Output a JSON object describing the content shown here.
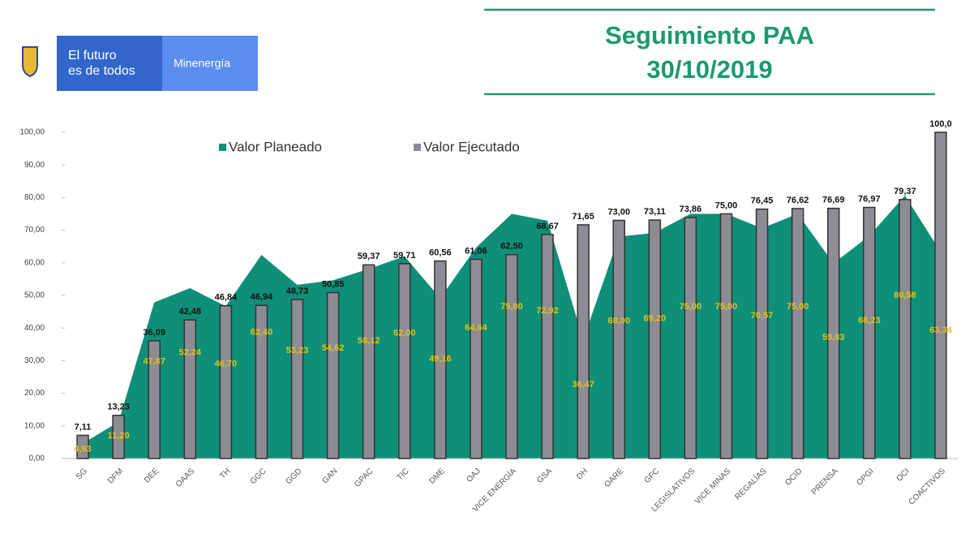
{
  "header": {
    "brand_line1": "El futuro",
    "brand_line2": "es de todos",
    "ministry": "Minenergía",
    "title": "Seguimiento PAA",
    "date": "30/10/2019"
  },
  "chart_data": {
    "type": "area-bar",
    "categories": [
      "SG",
      "DFM",
      "DEE",
      "OAAS",
      "TH",
      "GGC",
      "GGD",
      "GAN",
      "GPAC",
      "TIC",
      "DME",
      "OAJ",
      "VICE ENERGÍA",
      "GSA",
      "DH",
      "OARE",
      "GFC",
      "LEGISLATIVOS",
      "VICE MINAS",
      "REGALÍAS",
      "OCID",
      "PRENSA",
      "OPGI",
      "OCI",
      "COACTIVOS"
    ],
    "series": [
      {
        "name": "Valor Planeado",
        "color": "#0f8f78",
        "values": [
          4.63,
          11.2,
          47.87,
          52.24,
          46.7,
          62.4,
          53.23,
          54.62,
          58.12,
          62.0,
          49.16,
          64.64,
          75.0,
          72.92,
          36.47,
          68.0,
          69.2,
          75.0,
          75.0,
          70.57,
          75.0,
          59.83,
          68.23,
          80.58,
          63.34
        ],
        "value_labels": [
          "4,63",
          "11,20",
          "47,87",
          "52,24",
          "46,70",
          "62,40",
          "53,23",
          "54,62",
          "58,12",
          "62,00",
          "49,16",
          "64,64",
          "75,00",
          "72,92",
          "36,47",
          "68,00",
          "69,20",
          "75,00",
          "75,00",
          "70,57",
          "75,00",
          "59,83",
          "68,23",
          "80,58",
          "63,34"
        ]
      },
      {
        "name": "Valor Ejecutado",
        "color": "#8c8c94",
        "values": [
          7.11,
          13.23,
          36.09,
          42.48,
          46.84,
          46.94,
          48.73,
          50.85,
          59.37,
          59.71,
          60.56,
          61.06,
          62.5,
          68.67,
          71.65,
          73.0,
          73.11,
          73.86,
          75.0,
          76.45,
          76.62,
          76.69,
          76.97,
          79.37,
          100.0
        ],
        "value_labels": [
          "7,11",
          "13,23",
          "36,09",
          "42,48",
          "46,84",
          "46,94",
          "48,73",
          "50,85",
          "59,37",
          "59,71",
          "60,56",
          "61,06",
          "62,50",
          "68,67",
          "71,65",
          "73,00",
          "73,11",
          "73,86",
          "75,00",
          "76,45",
          "76,62",
          "76,69",
          "76,97",
          "79,37",
          "100,0"
        ]
      }
    ],
    "ylim": [
      0,
      100
    ],
    "yticks": [
      {
        "value": 0,
        "label": "0,00"
      },
      {
        "value": 10,
        "label": "10,00"
      },
      {
        "value": 20,
        "label": "20,00"
      },
      {
        "value": 30,
        "label": "30,00"
      },
      {
        "value": 40,
        "label": "40,00"
      },
      {
        "value": 50,
        "label": "50,00"
      },
      {
        "value": 60,
        "label": "60,00"
      },
      {
        "value": 70,
        "label": "70,00"
      },
      {
        "value": 80,
        "label": "80,00"
      },
      {
        "value": 90,
        "label": "90,00"
      },
      {
        "value": 100,
        "label": "100,00"
      }
    ],
    "legend": "top"
  }
}
